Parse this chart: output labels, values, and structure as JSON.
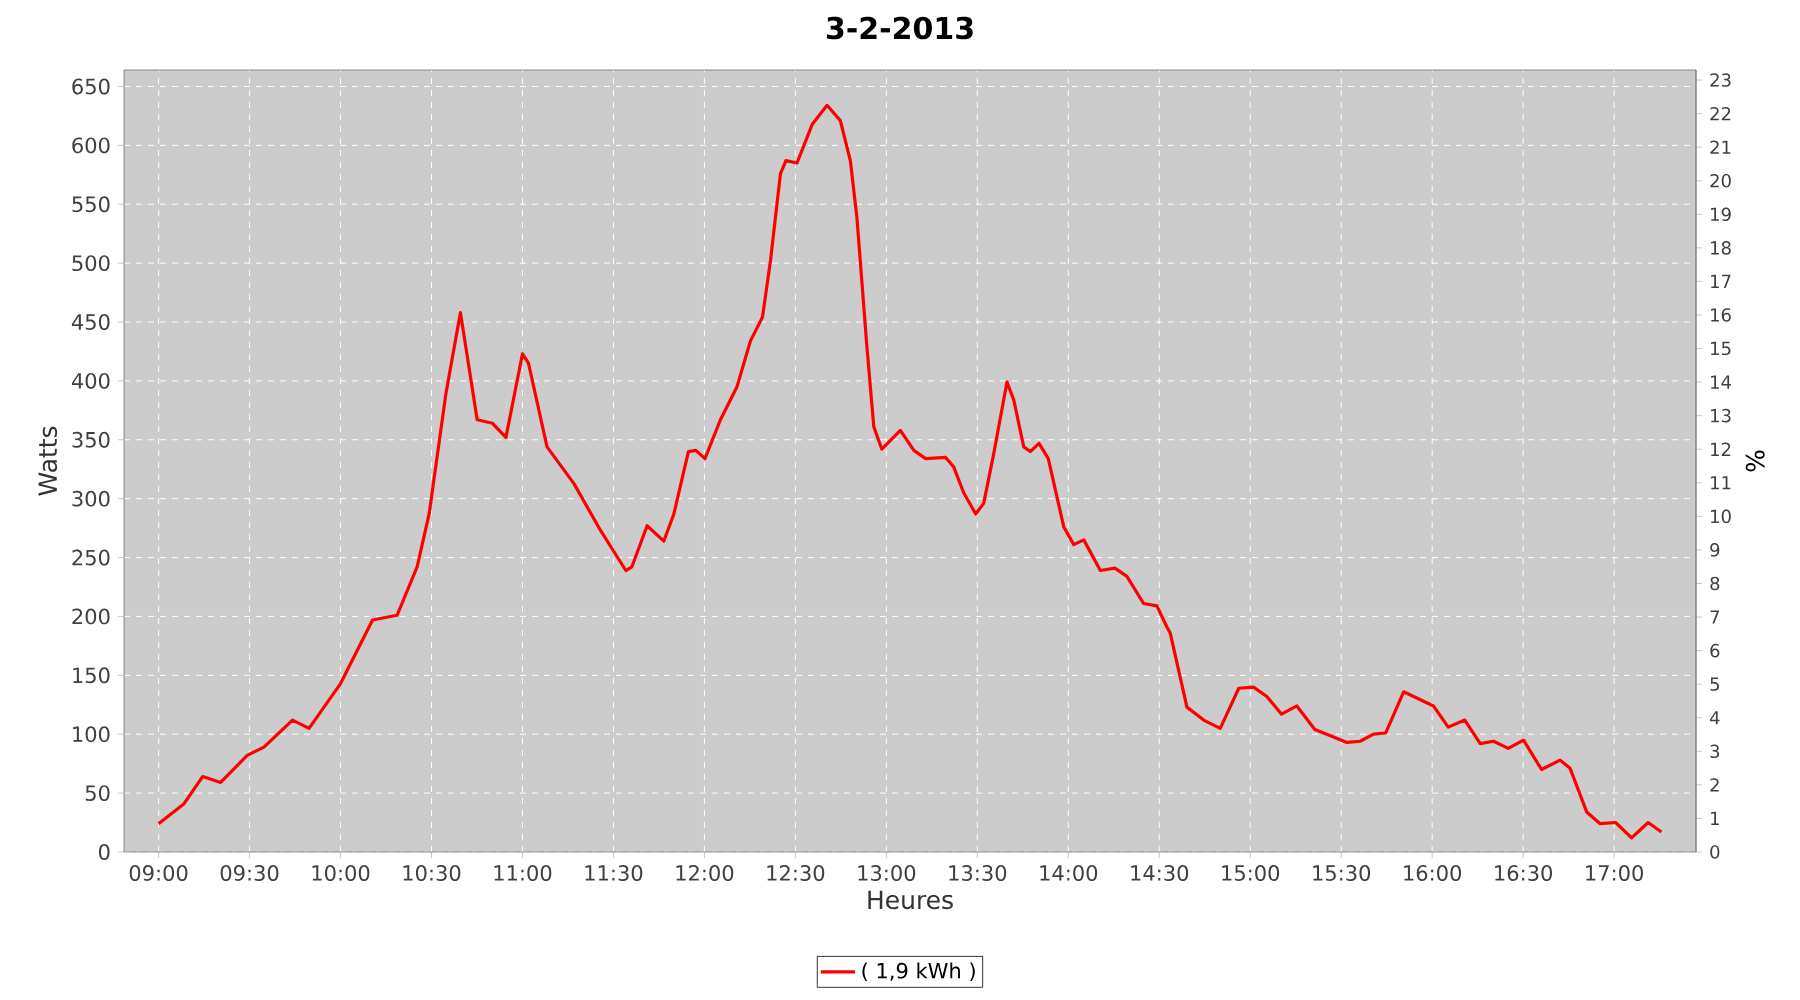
{
  "chart_data": {
    "type": "line",
    "title": "3-2-2013",
    "xlabel": "Heures",
    "ylabel": "Watts",
    "y2label": "%",
    "x": [
      9.0,
      9.14,
      9.242,
      9.341,
      9.487,
      9.579,
      9.736,
      9.827,
      10.0,
      10.176,
      10.311,
      10.421,
      10.487,
      10.579,
      10.659,
      10.751,
      10.835,
      10.909,
      11.0,
      11.033,
      11.135,
      11.282,
      11.429,
      11.568,
      11.601,
      11.685,
      11.777,
      11.832,
      11.912,
      11.953,
      12.003,
      12.088,
      12.179,
      12.253,
      12.319,
      12.363,
      12.418,
      12.448,
      12.509,
      12.593,
      12.674,
      12.747,
      12.802,
      12.838,
      12.893,
      12.931,
      12.975,
      13.077,
      13.151,
      13.216,
      13.326,
      13.37,
      13.425,
      13.491,
      13.535,
      13.59,
      13.663,
      13.7,
      13.755,
      13.791,
      13.839,
      13.89,
      13.975,
      14.03,
      14.085,
      14.176,
      14.256,
      14.322,
      14.414,
      14.487,
      14.542,
      14.56,
      14.652,
      14.744,
      14.835,
      14.937,
      15.018,
      15.091,
      15.172,
      15.256,
      15.355,
      15.451,
      15.531,
      15.604,
      15.678,
      15.744,
      15.843,
      15.898,
      16.007,
      16.088,
      16.179,
      16.264,
      16.337,
      16.418,
      16.502,
      16.601,
      16.703,
      16.758,
      16.849,
      16.923,
      17.008,
      17.096,
      17.187,
      17.26
    ],
    "series": [
      {
        "name": "( 1,9 kWh )",
        "color": "#ff0000",
        "values": [
          24,
          41,
          64,
          59,
          82,
          89,
          112,
          105,
          143,
          197,
          201,
          242,
          287,
          389,
          458,
          367,
          364,
          352,
          423,
          415,
          344,
          313,
          273,
          239,
          242,
          277,
          264,
          287,
          340,
          341,
          334,
          367,
          395,
          434,
          454,
          502,
          576,
          587,
          585,
          618,
          634,
          621,
          587,
          539,
          429,
          361,
          342,
          358,
          341,
          334,
          335,
          327,
          305,
          287,
          296,
          338,
          399,
          384,
          344,
          340,
          347,
          334,
          276,
          261,
          265,
          239,
          241,
          234,
          211,
          209,
          191,
          186,
          123,
          112,
          105,
          139,
          140,
          132,
          117,
          124,
          104,
          98,
          93,
          94,
          100,
          101,
          136,
          132,
          124,
          106,
          112,
          92,
          94,
          88,
          95,
          70,
          78,
          71,
          34,
          24,
          25,
          12,
          25,
          17
        ]
      }
    ],
    "xlim": [
      8.81,
      17.45
    ],
    "xticks": [
      {
        "value": 9,
        "label": "09:00"
      },
      {
        "value": 9.5,
        "label": "09:30"
      },
      {
        "value": 10,
        "label": "10:00"
      },
      {
        "value": 10.5,
        "label": "10:30"
      },
      {
        "value": 11,
        "label": "11:00"
      },
      {
        "value": 11.5,
        "label": "11:30"
      },
      {
        "value": 12,
        "label": "12:00"
      },
      {
        "value": 12.5,
        "label": "12:30"
      },
      {
        "value": 13,
        "label": "13:00"
      },
      {
        "value": 13.5,
        "label": "13:30"
      },
      {
        "value": 14,
        "label": "14:00"
      },
      {
        "value": 14.5,
        "label": "14:30"
      },
      {
        "value": 15,
        "label": "15:00"
      },
      {
        "value": 15.5,
        "label": "15:30"
      },
      {
        "value": 16,
        "label": "16:00"
      },
      {
        "value": 16.5,
        "label": "16:30"
      },
      {
        "value": 17,
        "label": "17:00"
      }
    ],
    "ylim": [
      0,
      664
    ],
    "yticks": [
      0,
      50,
      100,
      150,
      200,
      250,
      300,
      350,
      400,
      450,
      500,
      550,
      600,
      650
    ],
    "y2lim": [
      0,
      23.3
    ],
    "y2ticks": [
      0,
      1,
      2,
      3,
      4,
      5,
      6,
      7,
      8,
      9,
      10,
      11,
      12,
      13,
      14,
      15,
      16,
      17,
      18,
      19,
      20,
      21,
      22,
      23
    ],
    "grid": true,
    "legend": "bottom",
    "marker": "none",
    "line_style": "solid"
  }
}
